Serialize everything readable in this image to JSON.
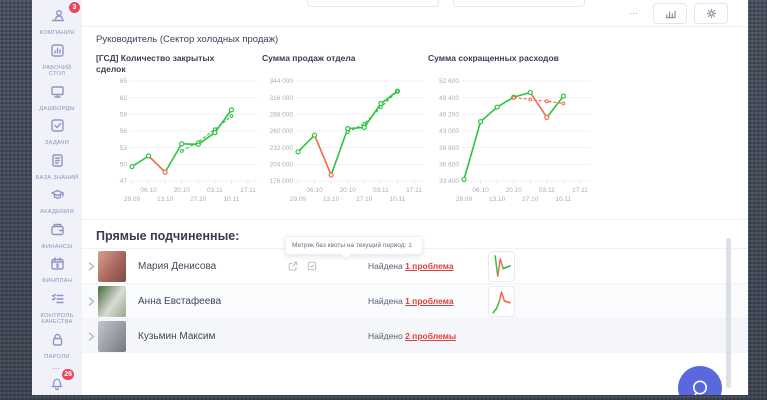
{
  "colors": {
    "green": "#2cc43f",
    "red": "#f4694b",
    "accent": "#5a68de",
    "badge_red": "#e8495f",
    "link_red": "#e0403c",
    "grid": "#f0f1f5",
    "tick_text": "#a9aeba"
  },
  "topbar": {
    "more": "⋯"
  },
  "sidebar": {
    "avatar_badge": "3",
    "more_dots": "⋯",
    "notifications_badge": "26",
    "items": [
      {
        "id": "company",
        "icon": "person-desk-icon",
        "label": "КОМПАНИЯ"
      },
      {
        "id": "desktop",
        "icon": "bar-chart-icon",
        "label": "РАБОЧИЙ СТОЛ"
      },
      {
        "id": "dashboards",
        "icon": "monitor-icon",
        "label": "ДАШБОРДЫ"
      },
      {
        "id": "tasks",
        "icon": "checkbox-icon",
        "label": "ЗАДАЧИ"
      },
      {
        "id": "knowledge-base",
        "icon": "document-icon",
        "label": "БАЗА ЗНАНИЙ"
      },
      {
        "id": "academy",
        "icon": "graduation-cap-icon",
        "label": "АКАДЕМИЯ"
      },
      {
        "id": "finance",
        "icon": "wallet-icon",
        "label": "ФИНАНСЫ"
      },
      {
        "id": "finplan",
        "icon": "calendar-money-icon",
        "label": "ФИНПЛАН"
      },
      {
        "id": "quality-control",
        "icon": "checklist-icon",
        "label": "КОНТРОЛЬ КАЧЕСТВА"
      },
      {
        "id": "passwords",
        "icon": "padlock-icon",
        "label": "ПАРОЛИ"
      }
    ]
  },
  "header": {
    "title": "Руководитель (Сектор холодных продаж)"
  },
  "chart_data": [
    {
      "type": "line",
      "title": "[ГСД] Количество закрытых сделок",
      "x": [
        "29.09",
        "06.10",
        "13.10",
        "20.10",
        "27.10",
        "03.11",
        "10.11",
        "17.11"
      ],
      "ylim": [
        47,
        65
      ],
      "yticks": [
        65,
        62,
        59,
        56,
        53,
        50,
        47
      ],
      "ytick_labels": [
        "65",
        "62",
        "59",
        "56",
        "53",
        "50",
        "47"
      ],
      "series": [
        {
          "name": "fact",
          "style": "solid",
          "values": [
            49.6,
            51.5,
            48.6,
            53.7,
            53.6,
            55.7,
            59.8
          ],
          "segment_colors": [
            "green",
            "red",
            "green",
            "green",
            "green",
            "green"
          ]
        },
        {
          "name": "trend",
          "style": "dashed",
          "start_index": 3,
          "color": "green",
          "values": [
            52.4,
            54.0,
            56.3,
            58.7
          ]
        }
      ]
    },
    {
      "type": "line",
      "title": "Сумма продаж отдела",
      "x": [
        "29.09",
        "06.10",
        "13.10",
        "20.10",
        "27.10",
        "03.11",
        "10.11",
        "17.11"
      ],
      "ylim": [
        176000,
        344000
      ],
      "yticks": [
        344000,
        316000,
        288000,
        260000,
        232000,
        204000,
        176000
      ],
      "ytick_labels": [
        "344 000",
        "316 000",
        "288 000",
        "260 000",
        "232 000",
        "204 000",
        "176 000"
      ],
      "series": [
        {
          "name": "fact",
          "style": "solid",
          "values": [
            225000,
            253000,
            186000,
            264000,
            266000,
            306000,
            327000
          ],
          "segment_colors": [
            "green",
            "red",
            "green",
            "green",
            "green",
            "green"
          ]
        },
        {
          "name": "trend",
          "style": "dashed",
          "start_index": 3,
          "color": "green",
          "values": [
            258000,
            272000,
            300000,
            327000
          ]
        }
      ]
    },
    {
      "type": "line",
      "title": "Сумма сокращенных расходов",
      "x": [
        "29.09",
        "06.10",
        "13.10",
        "20.10",
        "27.10",
        "03.11",
        "10.11",
        "17.11"
      ],
      "ylim": [
        33400,
        52600
      ],
      "yticks": [
        52600,
        49400,
        46200,
        43000,
        39800,
        36600,
        33400
      ],
      "ytick_labels": [
        "52 600",
        "49 400",
        "46 200",
        "43 000",
        "39 800",
        "36 600",
        "33 400"
      ],
      "series": [
        {
          "name": "fact",
          "style": "solid",
          "values": [
            33700,
            44800,
            47600,
            49500,
            50400,
            45600,
            49700
          ],
          "segment_colors": [
            "green",
            "green",
            "green",
            "green",
            "red",
            "green"
          ]
        },
        {
          "name": "trend",
          "style": "dashed",
          "start_index": 3,
          "color": "red",
          "values": [
            49400,
            49050,
            48700,
            48300
          ]
        }
      ]
    }
  ],
  "subordinates": {
    "section_title": "Прямые подчиненные:",
    "tooltip": "Метрик без квоты на текущий период: 1",
    "rows": [
      {
        "name": "Мария Денисова",
        "status_prefix": "Найдена",
        "status_link": "1 проблема",
        "has_icons": true,
        "avatar_gradient": "linear-gradient(125deg,#d9a08e 0%,#a8675c 55%,#7e4a43 100%)",
        "sparkline": {
          "segments": [
            {
              "color": "green",
              "pts": [
                [
                  20,
                  8
                ],
                [
                  32,
                  88
                ]
              ]
            },
            {
              "color": "red",
              "pts": [
                [
                  32,
                  88
                ],
                [
                  44,
                  20
                ],
                [
                  58,
                  58
                ]
              ]
            },
            {
              "color": "green",
              "pts": [
                [
                  58,
                  58
                ],
                [
                  90,
                  48
                ]
              ]
            }
          ]
        }
      },
      {
        "name": "Анна Евстафеева",
        "status_prefix": "Найдена",
        "status_link": "1 проблема",
        "has_icons": false,
        "avatar_gradient": "linear-gradient(125deg,#44683f 0%,#d9dcd4 55%,#96a88c 100%)",
        "sparkline": {
          "segments": [
            {
              "color": "green",
              "pts": [
                [
                  10,
                  95
                ],
                [
                  26,
                  78
                ],
                [
                  40,
                  48
                ]
              ]
            },
            {
              "color": "red",
              "pts": [
                [
                  40,
                  48
                ],
                [
                  50,
                  12
                ],
                [
                  64,
                  48
                ],
                [
                  90,
                  55
                ]
              ]
            }
          ]
        }
      },
      {
        "name": "Кузьмин Максим",
        "status_prefix": "Найдено",
        "status_link": "2 проблемы",
        "has_icons": false,
        "avatar_gradient": "linear-gradient(125deg,#c2c6cb 0%,#979da3 55%,#73797f 100%)",
        "sparkline": null
      }
    ]
  }
}
